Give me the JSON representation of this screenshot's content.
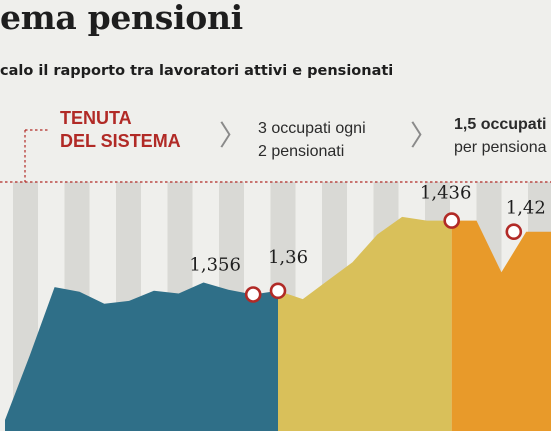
{
  "header": {
    "title": "ema pensioni",
    "subtitle": "calo il rapporto tra lavoratori attivi e pensionati",
    "section_label_line1": "TENUTA",
    "section_label_line2": "DEL SISTEMA",
    "phase1_line1": "3 occupati ogni",
    "phase1_line2": "2 pensionati",
    "phase2_line1": "1,5 occupati",
    "phase2_line2": "per pensiona"
  },
  "icons": {
    "separator": "chevron-right-icon"
  },
  "colors": {
    "background": "#efefec",
    "stripe": "#d9d9d5",
    "accent_red": "#b12a26",
    "teal": "#2f6f88",
    "mustard": "#d9c05a",
    "orange": "#e89a2a"
  },
  "chart_data": {
    "type": "area",
    "title": "",
    "xlabel": "",
    "ylabel": "",
    "grid": "vertical stripes",
    "legend": "none",
    "ylim": [
      1.22,
      1.48
    ],
    "x": [
      0,
      1,
      2,
      3,
      4,
      5,
      6,
      7,
      8,
      9,
      10,
      11,
      12,
      13,
      14,
      15,
      16,
      17,
      18,
      19,
      20,
      21,
      22
    ],
    "values": [
      1.22,
      1.29,
      1.364,
      1.359,
      1.346,
      1.349,
      1.36,
      1.357,
      1.369,
      1.361,
      1.356,
      1.36,
      1.351,
      1.371,
      1.391,
      1.421,
      1.44,
      1.436,
      1.436,
      1.436,
      1.38,
      1.424,
      1.424
    ],
    "series_segments": [
      {
        "color": "teal",
        "from": 0,
        "to": 11
      },
      {
        "color": "mustard",
        "from": 11,
        "to": 18
      },
      {
        "color": "orange",
        "from": 18,
        "to": 22
      }
    ],
    "annotations": [
      {
        "label": "1,356",
        "value": 1.356,
        "index": 10
      },
      {
        "label": "1,36",
        "value": 1.36,
        "index": 11
      },
      {
        "label": "1,436",
        "value": 1.436,
        "index": 18
      },
      {
        "label": "1,42",
        "value": 1.424,
        "index": 20.5
      }
    ]
  }
}
